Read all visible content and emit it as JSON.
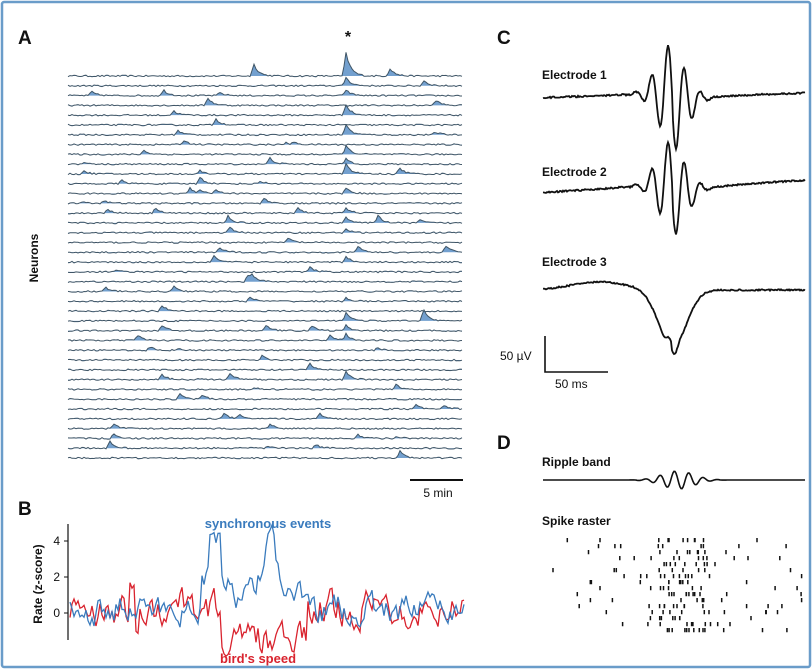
{
  "panels": {
    "a": {
      "letter": "A",
      "ylabel": "Neurons",
      "star": "*",
      "scalebar": "5 min",
      "neuron_count": 40
    },
    "b": {
      "letter": "B",
      "ylabel": "Rate (z-score)",
      "yticks": [
        "4",
        "2",
        "0"
      ],
      "legend_blue": "synchronous events",
      "legend_red": "bird's speed",
      "colors": {
        "blue": "#3a7bbd",
        "red": "#d9232e"
      }
    },
    "c": {
      "letter": "C",
      "electrodes": [
        "Electrode 1",
        "Electrode 2",
        "Electrode 3"
      ],
      "scale_v": "50 µV",
      "scale_t": "50 ms"
    },
    "d": {
      "letter": "D",
      "ripple_label": "Ripple band",
      "raster_label": "Spike raster"
    }
  },
  "colors": {
    "frame": "#6a9cc9",
    "trace": "#3f5566",
    "fill": "#5b8fc7"
  }
}
